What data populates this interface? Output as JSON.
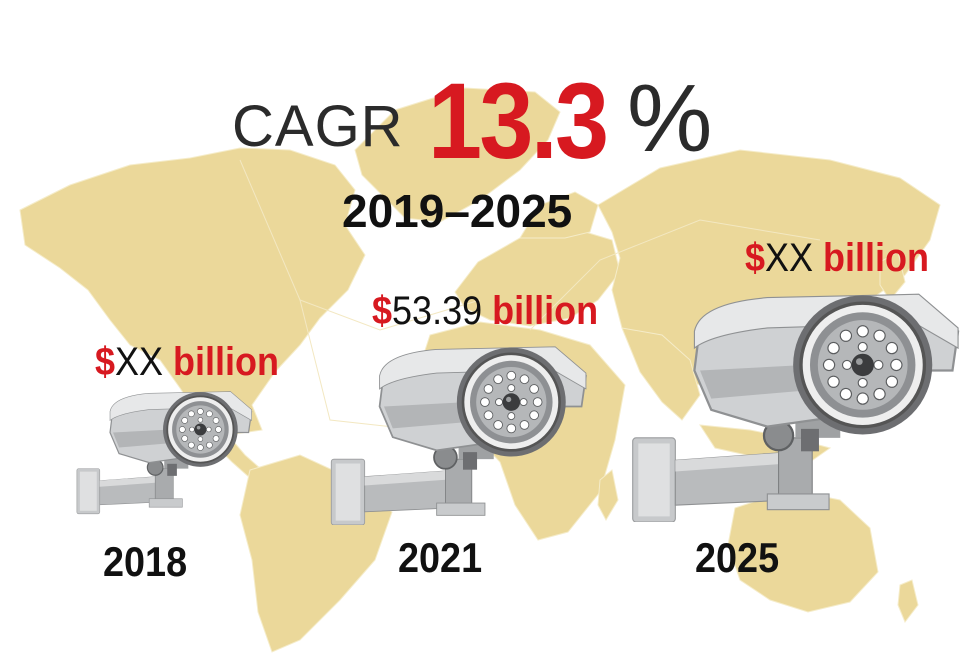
{
  "headline": {
    "cagr_label": "CAGR",
    "cagr_value": "13.3",
    "cagr_percent_sign": "%",
    "period": "2019–2025"
  },
  "milestones": [
    {
      "year": "2018",
      "currency": "$",
      "amount": "XX",
      "unit": "billion"
    },
    {
      "year": "2021",
      "currency": "$",
      "amount": "53.39",
      "unit": "billion"
    },
    {
      "year": "2025",
      "currency": "$",
      "amount": "XX",
      "unit": "billion"
    }
  ],
  "colors": {
    "accent_red": "#d71920",
    "map_fill": "#ebd89a",
    "camera_body": "#cfd1d3",
    "camera_dark": "#6d6e71"
  },
  "icons": [
    "world-map",
    "cctv-camera-icon"
  ]
}
